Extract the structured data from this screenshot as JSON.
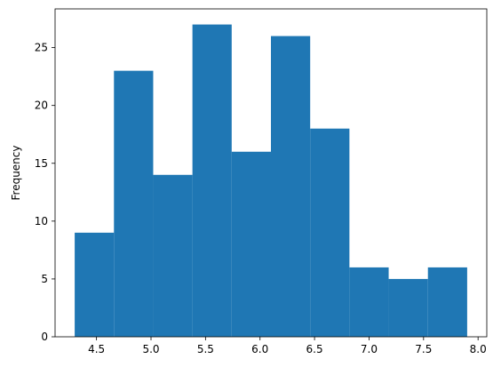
{
  "chart_data": {
    "type": "bar",
    "subtype": "histogram",
    "bin_edges": [
      4.3,
      4.66,
      5.02,
      5.38,
      5.74,
      6.1,
      6.46,
      6.82,
      7.18,
      7.54,
      7.9
    ],
    "values": [
      9,
      23,
      14,
      27,
      16,
      26,
      18,
      6,
      5,
      6
    ],
    "xlim": [
      4.12,
      8.08
    ],
    "ylim": [
      0,
      28.35
    ],
    "xticks": [
      4.5,
      5.0,
      5.5,
      6.0,
      6.5,
      7.0,
      7.5,
      8.0
    ],
    "xtick_labels": [
      "4.5",
      "5.0",
      "5.5",
      "6.0",
      "6.5",
      "7.0",
      "7.5",
      "8.0"
    ],
    "yticks": [
      0,
      5,
      10,
      15,
      20,
      25
    ],
    "ytick_labels": [
      "0",
      "5",
      "10",
      "15",
      "20",
      "25"
    ],
    "xlabel": "",
    "ylabel": "Frequency",
    "title": "",
    "grid": false,
    "bar_color": "#1f77b4"
  }
}
